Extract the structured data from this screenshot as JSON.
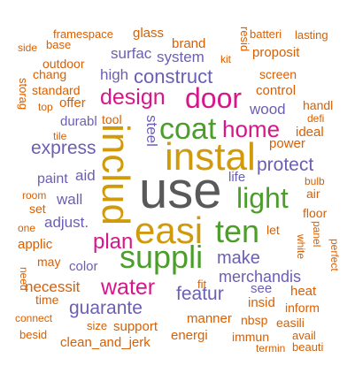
{
  "palette": {
    "orange": "#d95f02",
    "purple": "#6a5fb2",
    "green": "#4c9e2a",
    "mustard": "#d19a0a",
    "magenta": "#d7168a",
    "gray": "#595959"
  },
  "words": [
    {
      "text": "use",
      "color": "gray"
    },
    {
      "text": "includ",
      "color": "mustard"
    },
    {
      "text": "instal",
      "color": "mustard"
    },
    {
      "text": "easi",
      "color": "mustard"
    },
    {
      "text": "suppli",
      "color": "green"
    },
    {
      "text": "coat",
      "color": "green"
    },
    {
      "text": "light",
      "color": "green"
    },
    {
      "text": "ten",
      "color": "green"
    },
    {
      "text": "door",
      "color": "magenta"
    },
    {
      "text": "design",
      "color": "magenta"
    },
    {
      "text": "home",
      "color": "magenta"
    },
    {
      "text": "water",
      "color": "magenta"
    },
    {
      "text": "plan",
      "color": "magenta"
    },
    {
      "text": "construct",
      "color": "purple"
    },
    {
      "text": "express",
      "color": "purple"
    },
    {
      "text": "protect",
      "color": "purple"
    },
    {
      "text": "featur",
      "color": "purple"
    },
    {
      "text": "guarante",
      "color": "purple"
    },
    {
      "text": "make",
      "color": "purple"
    },
    {
      "text": "merchandis",
      "color": "purple"
    },
    {
      "text": "system",
      "color": "purple"
    },
    {
      "text": "surfac",
      "color": "purple"
    },
    {
      "text": "high",
      "color": "purple"
    },
    {
      "text": "wood",
      "color": "purple"
    },
    {
      "text": "steel",
      "color": "purple"
    },
    {
      "text": "wall",
      "color": "purple"
    },
    {
      "text": "paint",
      "color": "purple"
    },
    {
      "text": "aid",
      "color": "purple"
    },
    {
      "text": "adjust.",
      "color": "purple"
    },
    {
      "text": "color",
      "color": "purple"
    },
    {
      "text": "see",
      "color": "purple"
    },
    {
      "text": "life",
      "color": "purple"
    },
    {
      "text": "durabl",
      "color": "purple"
    },
    {
      "text": "necessit",
      "color": "orange"
    },
    {
      "text": "support",
      "color": "orange"
    },
    {
      "text": "control",
      "color": "orange"
    },
    {
      "text": "brand",
      "color": "orange"
    },
    {
      "text": "framespace",
      "color": "orange"
    },
    {
      "text": "glass",
      "color": "orange"
    },
    {
      "text": "batteri",
      "color": "orange"
    },
    {
      "text": "lasting",
      "color": "orange"
    },
    {
      "text": "base",
      "color": "orange"
    },
    {
      "text": "side",
      "color": "orange"
    },
    {
      "text": "outdoor",
      "color": "orange"
    },
    {
      "text": "chang",
      "color": "orange"
    },
    {
      "text": "standard",
      "color": "orange"
    },
    {
      "text": "offer",
      "color": "orange"
    },
    {
      "text": "top",
      "color": "orange"
    },
    {
      "text": "storag",
      "color": "orange"
    },
    {
      "text": "tile",
      "color": "orange"
    },
    {
      "text": "tool",
      "color": "orange"
    },
    {
      "text": "kit",
      "color": "orange"
    },
    {
      "text": "resid",
      "color": "orange"
    },
    {
      "text": "proposit",
      "color": "orange"
    },
    {
      "text": "screen",
      "color": "orange"
    },
    {
      "text": "handl",
      "color": "orange"
    },
    {
      "text": "defi",
      "color": "orange"
    },
    {
      "text": "ideal",
      "color": "orange"
    },
    {
      "text": "power",
      "color": "orange"
    },
    {
      "text": "bulb",
      "color": "orange"
    },
    {
      "text": "air",
      "color": "orange"
    },
    {
      "text": "floor",
      "color": "orange"
    },
    {
      "text": "panel",
      "color": "orange"
    },
    {
      "text": "white",
      "color": "orange"
    },
    {
      "text": "perfect",
      "color": "orange"
    },
    {
      "text": "let",
      "color": "orange"
    },
    {
      "text": "room",
      "color": "orange"
    },
    {
      "text": "set",
      "color": "orange"
    },
    {
      "text": "one",
      "color": "orange"
    },
    {
      "text": "applic",
      "color": "orange"
    },
    {
      "text": "may",
      "color": "orange"
    },
    {
      "text": "need",
      "color": "orange"
    },
    {
      "text": "time",
      "color": "orange"
    },
    {
      "text": "connect",
      "color": "orange"
    },
    {
      "text": "besid",
      "color": "orange"
    },
    {
      "text": "size",
      "color": "orange"
    },
    {
      "text": "clean_and_jerk",
      "color": "orange"
    },
    {
      "text": "manner",
      "color": "orange"
    },
    {
      "text": "energi",
      "color": "orange"
    },
    {
      "text": "immun",
      "color": "orange"
    },
    {
      "text": "fit",
      "color": "orange"
    },
    {
      "text": "insid",
      "color": "orange"
    },
    {
      "text": "nbsp",
      "color": "orange"
    },
    {
      "text": "easili",
      "color": "orange"
    },
    {
      "text": "heat",
      "color": "orange"
    },
    {
      "text": "inform",
      "color": "orange"
    },
    {
      "text": "avail",
      "color": "orange"
    },
    {
      "text": "termin",
      "color": "orange"
    },
    {
      "text": "beauti",
      "color": "orange"
    }
  ]
}
